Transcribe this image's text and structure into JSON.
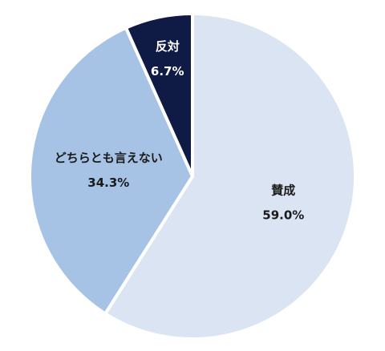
{
  "chart_data": {
    "type": "pie",
    "title": "",
    "legend": "none",
    "start_angle_deg": 0,
    "direction": "clockwise",
    "slices": [
      {
        "label": "賛成",
        "value": 59.0,
        "value_label": "59.0%",
        "color": "#dae4f2",
        "text_color": "#1a1a1a"
      },
      {
        "label": "どちらとも言えない",
        "value": 34.3,
        "value_label": "34.3%",
        "color": "#a6c3e6",
        "text_color": "#1a1a1a"
      },
      {
        "label": "反対",
        "value": 6.7,
        "value_label": "6.7%",
        "color": "#0f1a45",
        "text_color": "#ffffff"
      }
    ]
  }
}
